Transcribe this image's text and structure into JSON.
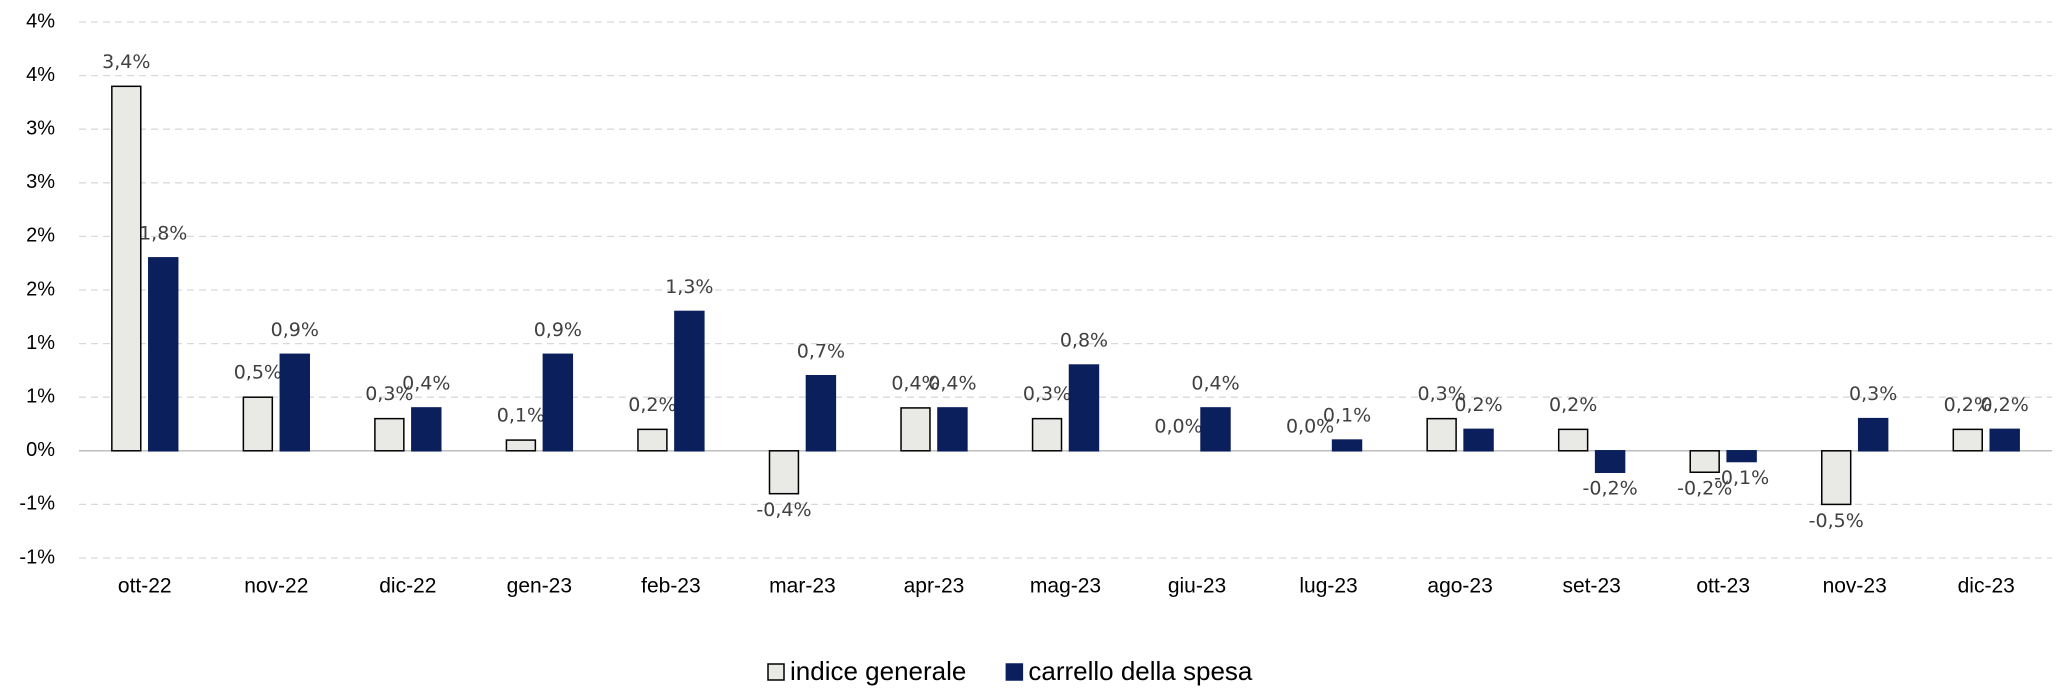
{
  "chart_data": {
    "type": "bar",
    "categories": [
      "ott-22",
      "nov-22",
      "dic-22",
      "gen-23",
      "feb-23",
      "mar-23",
      "apr-23",
      "mag-23",
      "giu-23",
      "lug-23",
      "ago-23",
      "set-23",
      "ott-23",
      "nov-23",
      "dic-23"
    ],
    "series": [
      {
        "name": "indice generale",
        "color": "#e9eae5",
        "values": [
          3.4,
          0.5,
          0.3,
          0.1,
          0.2,
          -0.4,
          0.4,
          0.3,
          0.0,
          0.0,
          0.3,
          0.2,
          -0.2,
          -0.5,
          0.2
        ],
        "value_labels": [
          "3,4%",
          "0,5%",
          "0,3%",
          "0,1%",
          "0,2%",
          "-0,4%",
          "0,4%",
          "0,3%",
          "0,0%",
          "0,0%",
          "0,3%",
          "0,2%",
          "-0,2%",
          "-0,5%",
          "0,2%"
        ]
      },
      {
        "name": "carrello della spesa",
        "color": "#0a1f5c",
        "values": [
          1.8,
          0.9,
          0.4,
          0.9,
          1.3,
          0.7,
          0.4,
          0.8,
          0.4,
          0.1,
          0.2,
          -0.2,
          -0.1,
          0.3,
          0.2
        ],
        "value_labels": [
          "1,8%",
          "0,9%",
          "0,4%",
          "0,9%",
          "1,3%",
          "0,7%",
          "0,4%",
          "0,8%",
          "0,4%",
          "0,1%",
          "0,2%",
          "-0,2%",
          "-0,1%",
          "0,3%",
          "0,2%"
        ]
      }
    ],
    "ylim": [
      -1,
      4
    ],
    "yticks": [
      {
        "value": -1,
        "label": "-1%"
      },
      {
        "value": -0.5,
        "label": "-1%"
      },
      {
        "value": 0,
        "label": "0%"
      },
      {
        "value": 0.5,
        "label": "1%"
      },
      {
        "value": 1,
        "label": "1%"
      },
      {
        "value": 1.5,
        "label": "2%"
      },
      {
        "value": 2,
        "label": "2%"
      },
      {
        "value": 2.5,
        "label": "3%"
      },
      {
        "value": 3,
        "label": "3%"
      },
      {
        "value": 3.5,
        "label": "4%"
      },
      {
        "value": 4,
        "label": "4%"
      }
    ],
    "grid": true,
    "legend": "bottom"
  }
}
